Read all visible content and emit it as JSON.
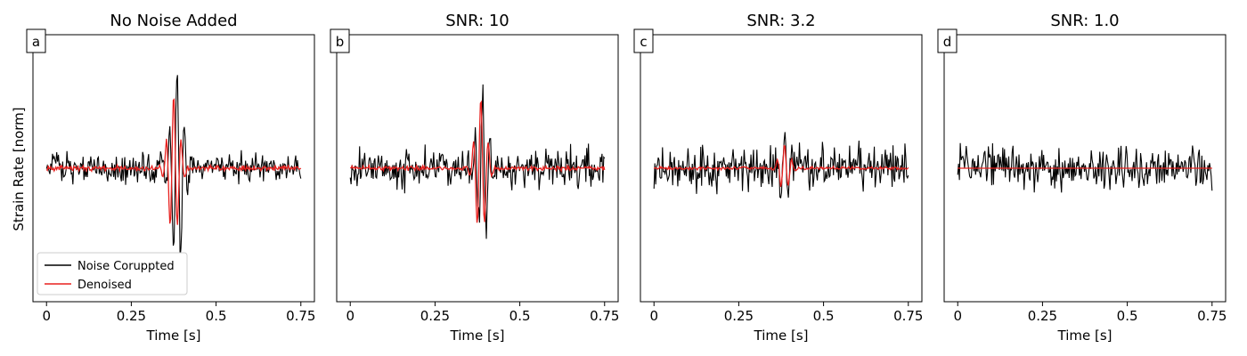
{
  "figure": {
    "ylabel": "Strain Rate [norm]",
    "legend": {
      "placement": "lower-left",
      "entries": [
        "Noise Coruppted",
        "Denoised"
      ]
    }
  },
  "colors": {
    "noisy": "#000000",
    "denoised": "#e8211f"
  },
  "chart_data": [
    {
      "type": "line",
      "panel_label": "a",
      "title": "No Noise Added",
      "xlabel": "Time [s]",
      "ylabel": "Strain Rate [norm]",
      "xlim": [
        -0.04,
        0.79
      ],
      "ylim": [
        -1.0,
        1.0
      ],
      "xticks": [
        0,
        0.25,
        0.5,
        0.75
      ],
      "xtick_labels": [
        "0",
        "0.25",
        "0.5",
        "0.75"
      ],
      "yticks": [],
      "duration": 0.75,
      "series": [
        {
          "name": "Noise Coruppted",
          "noise_level": 0.055,
          "event_amplitude": 0.83,
          "event_center": 0.385
        },
        {
          "name": "Denoised",
          "noise_level": 0.01,
          "event_amplitude": 0.55,
          "event_center": 0.375
        }
      ]
    },
    {
      "type": "line",
      "panel_label": "b",
      "title": "SNR: 10",
      "xlabel": "Time [s]",
      "xlim": [
        -0.04,
        0.79
      ],
      "ylim": [
        -1.0,
        1.0
      ],
      "xticks": [
        0,
        0.25,
        0.5,
        0.75
      ],
      "xtick_labels": [
        "0",
        "0.25",
        "0.5",
        "0.75"
      ],
      "yticks": [],
      "duration": 0.75,
      "series": [
        {
          "name": "Noise Coruppted",
          "noise_level": 0.075,
          "event_amplitude": 0.6,
          "event_center": 0.39
        },
        {
          "name": "Denoised",
          "noise_level": 0.008,
          "event_amplitude": 0.52,
          "event_center": 0.385
        }
      ]
    },
    {
      "type": "line",
      "panel_label": "c",
      "title": "SNR: 3.2",
      "xlabel": "Time [s]",
      "xlim": [
        -0.04,
        0.79
      ],
      "ylim": [
        -1.0,
        1.0
      ],
      "xticks": [
        0,
        0.25,
        0.5,
        0.75
      ],
      "xtick_labels": [
        "0",
        "0.25",
        "0.5",
        "0.75"
      ],
      "yticks": [],
      "duration": 0.75,
      "series": [
        {
          "name": "Noise Coruppted",
          "noise_level": 0.085,
          "event_amplitude": 0.3,
          "event_center": 0.385
        },
        {
          "name": "Denoised",
          "noise_level": 0.006,
          "event_amplitude": 0.17,
          "event_center": 0.385
        }
      ]
    },
    {
      "type": "line",
      "panel_label": "d",
      "title": "SNR: 1.0",
      "xlabel": "Time [s]",
      "xlim": [
        -0.04,
        0.79
      ],
      "ylim": [
        -1.0,
        1.0
      ],
      "xticks": [
        0,
        0.25,
        0.5,
        0.75
      ],
      "xtick_labels": [
        "0",
        "0.25",
        "0.5",
        "0.75"
      ],
      "yticks": [],
      "duration": 0.75,
      "series": [
        {
          "name": "Noise Coruppted",
          "noise_level": 0.075,
          "event_amplitude": 0.0,
          "event_center": 0.385
        },
        {
          "name": "Denoised",
          "noise_level": 0.0,
          "event_amplitude": 0.0,
          "event_center": 0.385
        }
      ]
    }
  ]
}
